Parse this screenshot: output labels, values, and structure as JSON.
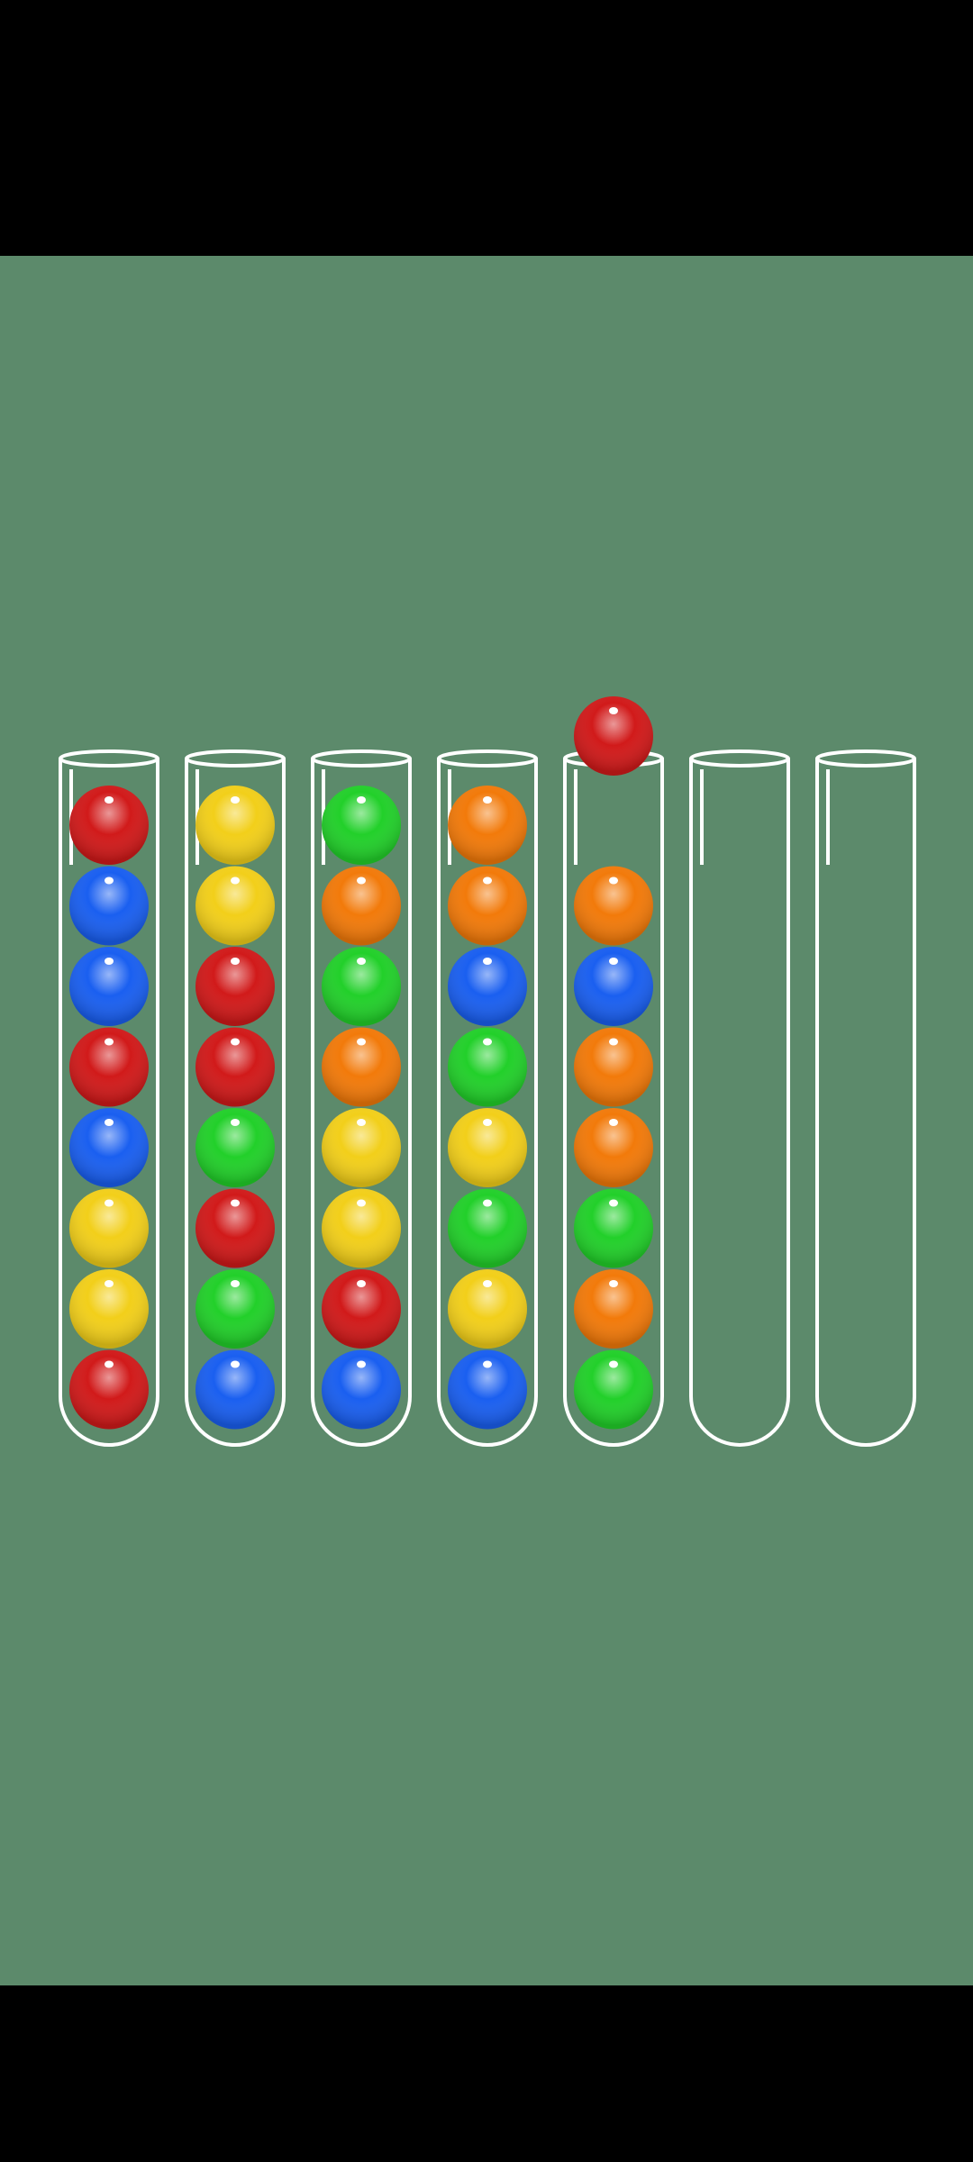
{
  "game": {
    "name": "ball-sort-puzzle",
    "tube_capacity": 8
  },
  "colors": {
    "background": "#5c8a6b",
    "tube_outline": "#ffffff",
    "red": "#d11a1a",
    "blue": "#1a5ff0",
    "yellow": "#f2cf1a",
    "green": "#22d02a",
    "orange": "#f27a0a"
  },
  "tubes": [
    {
      "id": 1,
      "balls_top_to_bottom": [
        "red",
        "blue",
        "blue",
        "red",
        "blue",
        "yellow",
        "yellow",
        "red"
      ]
    },
    {
      "id": 2,
      "balls_top_to_bottom": [
        "yellow",
        "yellow",
        "red",
        "red",
        "green",
        "red",
        "green",
        "blue"
      ]
    },
    {
      "id": 3,
      "balls_top_to_bottom": [
        "green",
        "orange",
        "green",
        "orange",
        "yellow",
        "yellow",
        "red",
        "blue"
      ]
    },
    {
      "id": 4,
      "balls_top_to_bottom": [
        "orange",
        "orange",
        "blue",
        "green",
        "yellow",
        "green",
        "yellow",
        "blue"
      ]
    },
    {
      "id": 5,
      "balls_top_to_bottom": [
        "orange",
        "blue",
        "orange",
        "orange",
        "green",
        "orange",
        "green"
      ],
      "lifted_ball": "red"
    },
    {
      "id": 6,
      "balls_top_to_bottom": []
    },
    {
      "id": 7,
      "balls_top_to_bottom": []
    }
  ]
}
